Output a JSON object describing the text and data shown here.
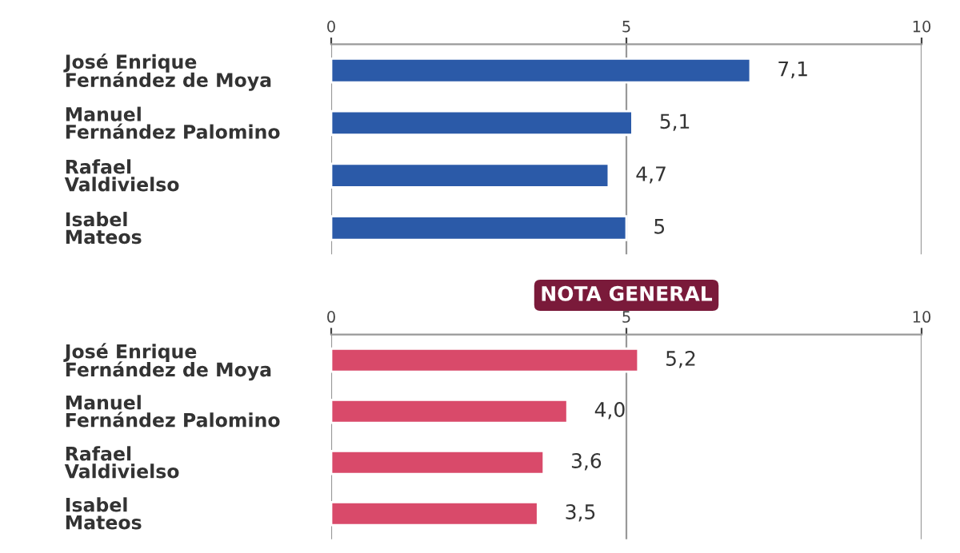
{
  "chart_data": [
    {
      "type": "bar",
      "orientation": "horizontal",
      "categories": [
        "José Enrique\nFernández de Moya",
        "Manuel\nFernández Palomino",
        "Rafael\nValdivielso",
        "Isabel\nMateos"
      ],
      "values": [
        7.1,
        5.1,
        4.7,
        5
      ],
      "value_labels": [
        "7,1",
        "5,1",
        "4,7",
        "5"
      ],
      "color": "#2b5aa8",
      "xlim": [
        0,
        10
      ],
      "xticks": [
        0,
        5,
        10
      ],
      "grid": "x"
    },
    {
      "type": "bar",
      "orientation": "horizontal",
      "title": "NOTA GENERAL",
      "categories": [
        "José Enrique\nFernández de Moya",
        "Manuel\nFernández Palomino",
        "Rafael\nValdivielso",
        "Isabel\nMateos"
      ],
      "values": [
        5.2,
        4.0,
        3.6,
        3.5
      ],
      "value_labels": [
        "5,2",
        "4,0",
        "3,6",
        "3,5"
      ],
      "color": "#d94a6a",
      "xlim": [
        0,
        10
      ],
      "xticks": [
        0,
        5,
        10
      ],
      "grid": "x"
    }
  ]
}
